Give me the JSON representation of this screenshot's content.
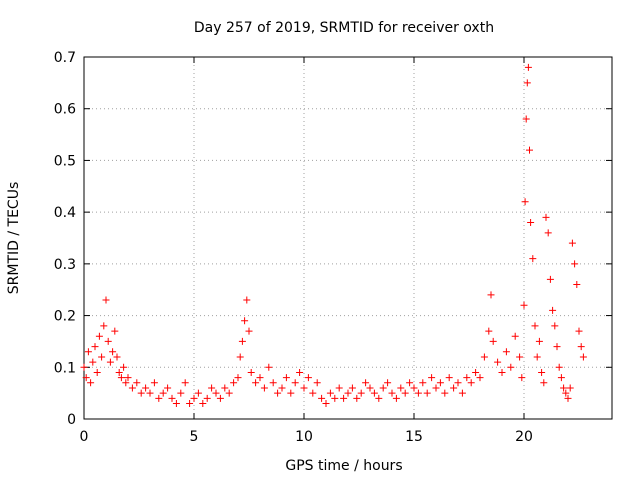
{
  "chart_data": {
    "type": "scatter",
    "title": "Day 257 of 2019, SRMTID for receiver oxth",
    "xlabel": "GPS time / hours",
    "ylabel": "SRMTID / TECUs",
    "xlim": [
      0,
      24
    ],
    "ylim": [
      0,
      0.7
    ],
    "xticks": [
      0,
      5,
      10,
      15,
      20
    ],
    "xtick_labels": [
      "0",
      "5",
      "10",
      "15",
      "20"
    ],
    "yticks": [
      0,
      0.1,
      0.2,
      0.3,
      0.4,
      0.5,
      0.6,
      0.7
    ],
    "ytick_labels": [
      "0",
      "0.1",
      "0.2",
      "0.3",
      "0.4",
      "0.5",
      "0.6",
      "0.7"
    ],
    "grid": true,
    "marker": "plus",
    "color": "#ff0000",
    "series": [
      {
        "name": "SRMTID",
        "points": [
          [
            0.0,
            0.1
          ],
          [
            0.1,
            0.08
          ],
          [
            0.2,
            0.13
          ],
          [
            0.3,
            0.07
          ],
          [
            0.4,
            0.11
          ],
          [
            0.5,
            0.14
          ],
          [
            0.6,
            0.09
          ],
          [
            0.7,
            0.16
          ],
          [
            0.8,
            0.12
          ],
          [
            0.9,
            0.18
          ],
          [
            1.0,
            0.23
          ],
          [
            1.1,
            0.15
          ],
          [
            1.2,
            0.11
          ],
          [
            1.3,
            0.13
          ],
          [
            1.4,
            0.17
          ],
          [
            1.5,
            0.12
          ],
          [
            1.6,
            0.09
          ],
          [
            1.7,
            0.08
          ],
          [
            1.8,
            0.1
          ],
          [
            1.9,
            0.07
          ],
          [
            2.0,
            0.08
          ],
          [
            2.2,
            0.06
          ],
          [
            2.4,
            0.07
          ],
          [
            2.6,
            0.05
          ],
          [
            2.8,
            0.06
          ],
          [
            3.0,
            0.05
          ],
          [
            3.2,
            0.07
          ],
          [
            3.4,
            0.04
          ],
          [
            3.6,
            0.05
          ],
          [
            3.8,
            0.06
          ],
          [
            4.0,
            0.04
          ],
          [
            4.2,
            0.03
          ],
          [
            4.4,
            0.05
          ],
          [
            4.6,
            0.07
          ],
          [
            4.8,
            0.03
          ],
          [
            5.0,
            0.04
          ],
          [
            5.2,
            0.05
          ],
          [
            5.4,
            0.03
          ],
          [
            5.6,
            0.04
          ],
          [
            5.8,
            0.06
          ],
          [
            6.0,
            0.05
          ],
          [
            6.2,
            0.04
          ],
          [
            6.4,
            0.06
          ],
          [
            6.6,
            0.05
          ],
          [
            6.8,
            0.07
          ],
          [
            7.0,
            0.08
          ],
          [
            7.1,
            0.12
          ],
          [
            7.2,
            0.15
          ],
          [
            7.3,
            0.19
          ],
          [
            7.4,
            0.23
          ],
          [
            7.5,
            0.17
          ],
          [
            7.6,
            0.09
          ],
          [
            7.8,
            0.07
          ],
          [
            8.0,
            0.08
          ],
          [
            8.2,
            0.06
          ],
          [
            8.4,
            0.1
          ],
          [
            8.6,
            0.07
          ],
          [
            8.8,
            0.05
          ],
          [
            9.0,
            0.06
          ],
          [
            9.2,
            0.08
          ],
          [
            9.4,
            0.05
          ],
          [
            9.6,
            0.07
          ],
          [
            9.8,
            0.09
          ],
          [
            10.0,
            0.06
          ],
          [
            10.2,
            0.08
          ],
          [
            10.4,
            0.05
          ],
          [
            10.6,
            0.07
          ],
          [
            10.8,
            0.04
          ],
          [
            11.0,
            0.03
          ],
          [
            11.2,
            0.05
          ],
          [
            11.4,
            0.04
          ],
          [
            11.6,
            0.06
          ],
          [
            11.8,
            0.04
          ],
          [
            12.0,
            0.05
          ],
          [
            12.2,
            0.06
          ],
          [
            12.4,
            0.04
          ],
          [
            12.6,
            0.05
          ],
          [
            12.8,
            0.07
          ],
          [
            13.0,
            0.06
          ],
          [
            13.2,
            0.05
          ],
          [
            13.4,
            0.04
          ],
          [
            13.6,
            0.06
          ],
          [
            13.8,
            0.07
          ],
          [
            14.0,
            0.05
          ],
          [
            14.2,
            0.04
          ],
          [
            14.4,
            0.06
          ],
          [
            14.6,
            0.05
          ],
          [
            14.8,
            0.07
          ],
          [
            15.0,
            0.06
          ],
          [
            15.2,
            0.05
          ],
          [
            15.4,
            0.07
          ],
          [
            15.6,
            0.05
          ],
          [
            15.8,
            0.08
          ],
          [
            16.0,
            0.06
          ],
          [
            16.2,
            0.07
          ],
          [
            16.4,
            0.05
          ],
          [
            16.6,
            0.08
          ],
          [
            16.8,
            0.06
          ],
          [
            17.0,
            0.07
          ],
          [
            17.2,
            0.05
          ],
          [
            17.4,
            0.08
          ],
          [
            17.6,
            0.07
          ],
          [
            17.8,
            0.09
          ],
          [
            18.0,
            0.08
          ],
          [
            18.2,
            0.12
          ],
          [
            18.4,
            0.17
          ],
          [
            18.5,
            0.24
          ],
          [
            18.6,
            0.15
          ],
          [
            18.8,
            0.11
          ],
          [
            19.0,
            0.09
          ],
          [
            19.2,
            0.13
          ],
          [
            19.4,
            0.1
          ],
          [
            19.6,
            0.16
          ],
          [
            19.8,
            0.12
          ],
          [
            19.9,
            0.08
          ],
          [
            20.0,
            0.22
          ],
          [
            20.05,
            0.42
          ],
          [
            20.1,
            0.58
          ],
          [
            20.15,
            0.65
          ],
          [
            20.2,
            0.68
          ],
          [
            20.25,
            0.52
          ],
          [
            20.3,
            0.38
          ],
          [
            20.4,
            0.31
          ],
          [
            20.5,
            0.18
          ],
          [
            20.6,
            0.12
          ],
          [
            20.7,
            0.15
          ],
          [
            20.8,
            0.09
          ],
          [
            20.9,
            0.07
          ],
          [
            21.0,
            0.39
          ],
          [
            21.1,
            0.36
          ],
          [
            21.2,
            0.27
          ],
          [
            21.3,
            0.21
          ],
          [
            21.4,
            0.18
          ],
          [
            21.5,
            0.14
          ],
          [
            21.6,
            0.1
          ],
          [
            21.7,
            0.08
          ],
          [
            21.8,
            0.06
          ],
          [
            21.9,
            0.05
          ],
          [
            22.0,
            0.04
          ],
          [
            22.1,
            0.06
          ],
          [
            22.2,
            0.34
          ],
          [
            22.3,
            0.3
          ],
          [
            22.4,
            0.26
          ],
          [
            22.5,
            0.17
          ],
          [
            22.6,
            0.14
          ],
          [
            22.7,
            0.12
          ]
        ]
      }
    ]
  }
}
